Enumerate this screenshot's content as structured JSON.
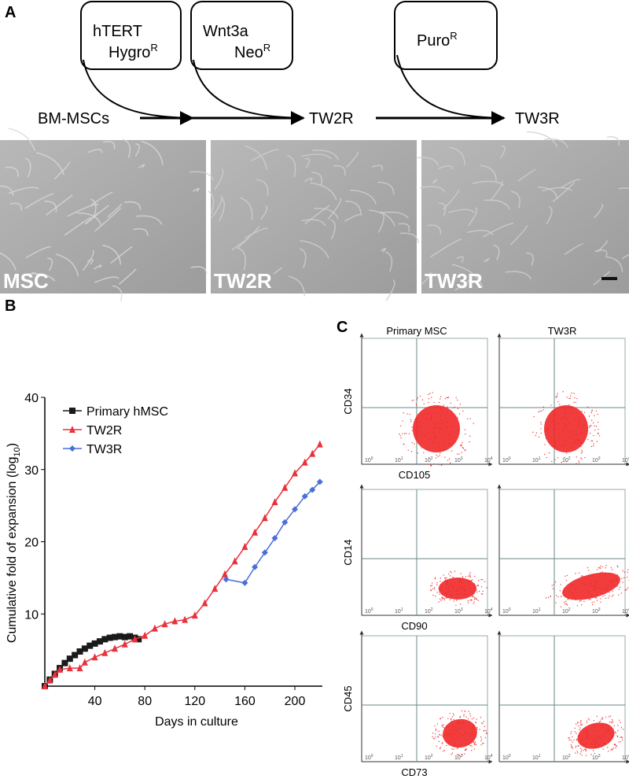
{
  "panel_a": {
    "label": "A",
    "boxes": [
      {
        "lines": [
          {
            "text": "hTERT"
          },
          {
            "text": "Hygro",
            "sup": "R"
          }
        ]
      },
      {
        "lines": [
          {
            "text": "Wnt3a"
          },
          {
            "text": "Neo",
            "sup": "R"
          }
        ]
      },
      {
        "lines": [
          {
            "text": "Puro",
            "sup": "R"
          }
        ]
      }
    ],
    "flow": [
      "BM-MSCs",
      "TW2R",
      "TW3R"
    ],
    "images": [
      "MSC",
      "TW2R",
      "TW3R"
    ]
  },
  "chart_data": {
    "type": "line",
    "label": "B",
    "x_label": "Days in culture",
    "y_label": "Cumulative fold of expansion (log",
    "y_label_sub": "10",
    "y_label_end": ")",
    "xlim": [
      0,
      222
    ],
    "ylim": [
      0,
      40
    ],
    "xticks": [
      40,
      80,
      120,
      160,
      200
    ],
    "yticks": [
      10,
      20,
      30,
      40
    ],
    "series": [
      {
        "name": "Primary hMSC",
        "color": "#1a1a1a",
        "marker": "square",
        "x": [
          0,
          4,
          8,
          12,
          16,
          20,
          24,
          28,
          32,
          36,
          40,
          44,
          48,
          52,
          56,
          60,
          64,
          68,
          72,
          75
        ],
        "values": [
          0,
          0.9,
          1.7,
          2.5,
          3.2,
          3.8,
          4.3,
          4.8,
          5.2,
          5.6,
          5.9,
          6.2,
          6.5,
          6.7,
          6.8,
          6.9,
          6.8,
          6.9,
          6.7,
          6.5
        ]
      },
      {
        "name": "TW2R",
        "color": "#e8323c",
        "marker": "triangle",
        "x": [
          0,
          4,
          8,
          12,
          20,
          28,
          32,
          40,
          48,
          56,
          64,
          72,
          80,
          88,
          96,
          104,
          112,
          120,
          128,
          136,
          144,
          152,
          160,
          168,
          176,
          184,
          192,
          200,
          208,
          214,
          220
        ],
        "values": [
          0,
          0.8,
          1.6,
          2.3,
          2.5,
          2.5,
          3.3,
          4,
          4.6,
          5.2,
          5.8,
          6.5,
          7,
          8,
          8.6,
          9,
          9.2,
          9.8,
          11.5,
          13.5,
          15.5,
          17.3,
          19.3,
          21.3,
          23.3,
          25.5,
          27.5,
          29.5,
          31,
          32.2,
          33.5
        ]
      },
      {
        "name": "TW3R",
        "color": "#4a6fd6",
        "marker": "diamond",
        "x": [
          145,
          160,
          168,
          176,
          184,
          192,
          200,
          208,
          214,
          220
        ],
        "values": [
          14.8,
          14.3,
          16.5,
          18.5,
          20.5,
          22.7,
          24.5,
          26.3,
          27.2,
          28.3
        ]
      }
    ]
  },
  "panel_c": {
    "label": "C",
    "columns": [
      "Primary MSC",
      "TW3R"
    ],
    "rows": [
      {
        "y_label": "CD34",
        "x_label": "CD105"
      },
      {
        "y_label": "CD14",
        "x_label": "CD90"
      },
      {
        "y_label": "CD45",
        "x_label": "CD73"
      }
    ],
    "tick_base": "10",
    "tick_exponents": [
      "0",
      "1",
      "2",
      "3",
      "4"
    ]
  }
}
